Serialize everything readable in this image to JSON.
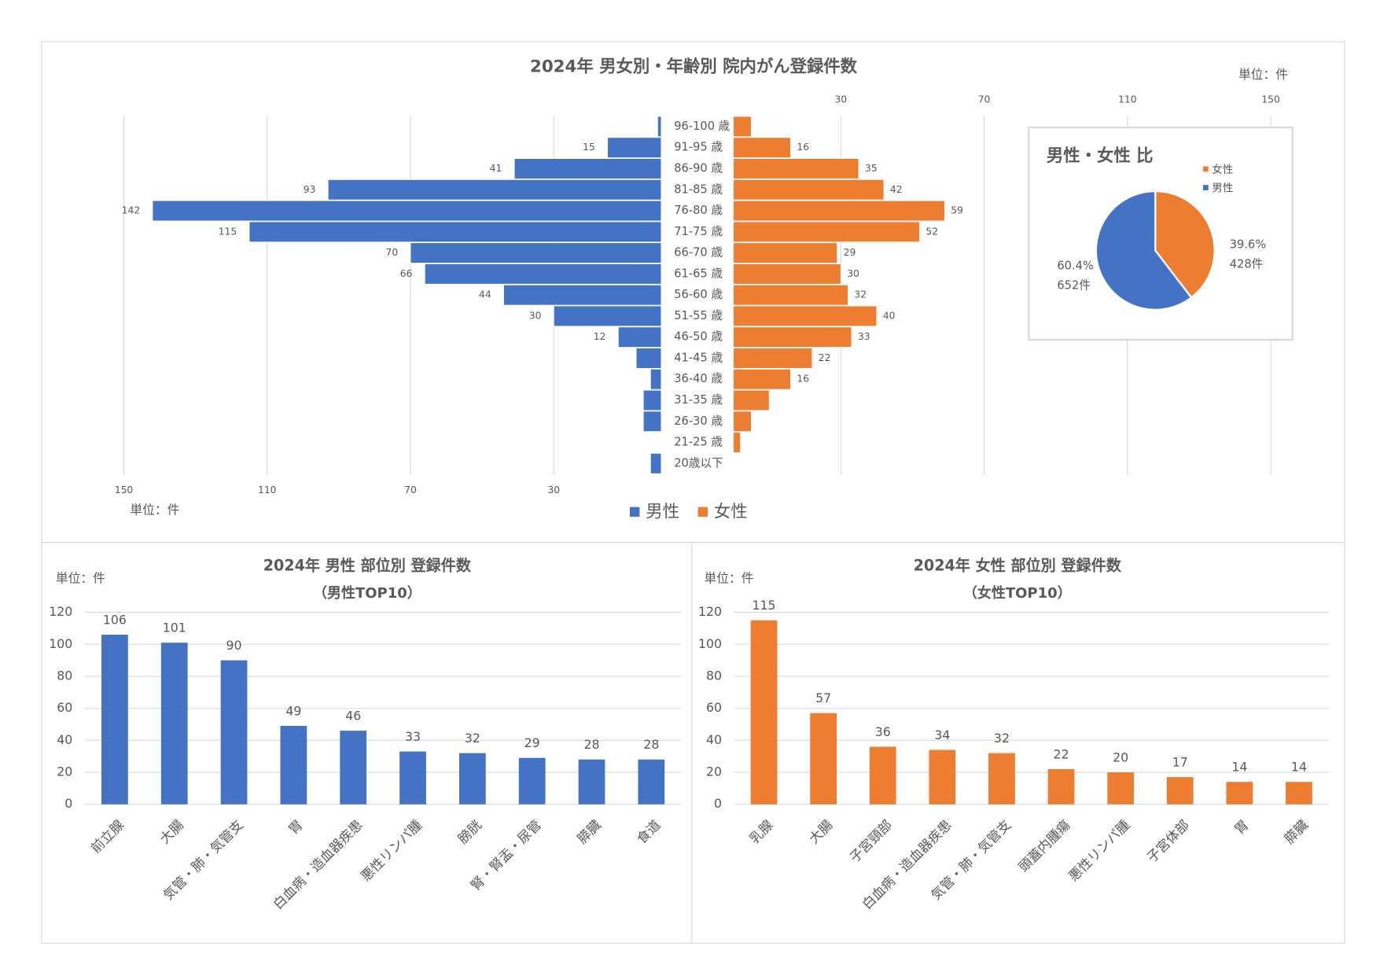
{
  "chart_data": [
    {
      "type": "pyramid",
      "title": "2024年 男女別・年齢別 院内がん登録件数",
      "unit": "単位：件",
      "categories": [
        "96-100 歳",
        "91-95 歳",
        "86-90 歳",
        "81-85 歳",
        "76-80 歳",
        "71-75 歳",
        "66-70 歳",
        "61-65 歳",
        "56-60 歳",
        "51-55 歳",
        "46-50 歳",
        "41-45 歳",
        "36-40 歳",
        "31-35 歳",
        "26-30 歳",
        "21-25 歳",
        "20歳以下"
      ],
      "series": [
        {
          "name": "男性",
          "color": "#4472c4",
          "values": [
            1,
            15,
            41,
            93,
            142,
            115,
            70,
            66,
            44,
            30,
            12,
            7,
            3,
            5,
            5,
            0,
            3
          ],
          "value_labels": [
            null,
            15,
            41,
            93,
            142,
            115,
            70,
            66,
            44,
            30,
            12,
            null,
            null,
            null,
            null,
            null,
            null
          ]
        },
        {
          "name": "女性",
          "color": "#ed7d31",
          "values": [
            5,
            16,
            35,
            42,
            59,
            52,
            29,
            30,
            32,
            40,
            33,
            22,
            16,
            10,
            5,
            2,
            0
          ],
          "value_labels": [
            null,
            16,
            35,
            42,
            59,
            52,
            29,
            30,
            32,
            40,
            33,
            22,
            16,
            null,
            null,
            null,
            null
          ]
        }
      ],
      "xlim": [
        0,
        150
      ],
      "xticks": [
        30,
        70,
        110,
        150
      ],
      "grid": true
    },
    {
      "type": "pie",
      "title": "男性・女性 比",
      "categories": [
        "女性",
        "男性"
      ],
      "colors": [
        "#ed7d31",
        "#4472c4"
      ],
      "values": [
        39.6,
        60.4
      ],
      "value_labels": [
        "39.6%",
        "60.4%"
      ],
      "counts": [
        428,
        652
      ],
      "count_labels": [
        "428件",
        "652件"
      ]
    },
    {
      "type": "bar",
      "title": "2024年 男性 部位別 登録件数",
      "subtitle": "（男性TOP10）",
      "unit": "単位：件",
      "color": "#4472c4",
      "categories": [
        "前立腺",
        "大腸",
        "気管・肺・気管支",
        "胃",
        "白血病・造血器疾患",
        "悪性リンパ腫",
        "膀胱",
        "腎・腎盂・尿管",
        "膵臓",
        "食道"
      ],
      "values": [
        106,
        101,
        90,
        49,
        46,
        33,
        32,
        29,
        28,
        28
      ],
      "ylim": [
        0,
        120
      ],
      "yticks": [
        0,
        20,
        40,
        60,
        80,
        100,
        120
      ],
      "grid": true
    },
    {
      "type": "bar",
      "title": "2024年 女性 部位別 登録件数",
      "subtitle": "（女性TOP10）",
      "unit": "単位：件",
      "color": "#ed7d31",
      "categories": [
        "乳腺",
        "大腸",
        "子宮頸部",
        "白血病・造血器疾患",
        "気管・肺・気管支",
        "頭蓋内腫瘍",
        "悪性リンパ腫",
        "子宮体部",
        "胃",
        "膵臓"
      ],
      "values": [
        115,
        57,
        36,
        34,
        32,
        22,
        20,
        17,
        14,
        14
      ],
      "ylim": [
        0,
        120
      ],
      "yticks": [
        0,
        20,
        40,
        60,
        80,
        100,
        120
      ],
      "grid": true
    }
  ]
}
